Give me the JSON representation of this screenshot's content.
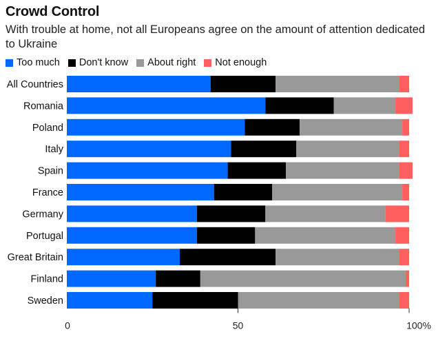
{
  "chart_data": {
    "type": "bar",
    "orientation": "horizontal",
    "stacked": true,
    "title": "Crowd Control",
    "subtitle": "With trouble at home, not all Europeans agree on the amount of attention dedicated to Ukraine",
    "xlabel": "",
    "ylabel": "",
    "xlim": [
      0,
      100
    ],
    "x_ticks": [
      0,
      50,
      100
    ],
    "x_tick_labels": [
      "0",
      "50",
      "100%"
    ],
    "grid": false,
    "legend_position": "top-left",
    "categories": [
      "All Countries",
      "Romania",
      "Poland",
      "Italy",
      "Spain",
      "France",
      "Germany",
      "Portugal",
      "Great Britain",
      "Finland",
      "Sweden"
    ],
    "series": [
      {
        "name": "Too much",
        "color": "#0068ff",
        "values": [
          42,
          58,
          52,
          48,
          47,
          43,
          38,
          38,
          33,
          26,
          25
        ]
      },
      {
        "name": "Don't know",
        "color": "#000000",
        "values": [
          19,
          20,
          16,
          19,
          17,
          17,
          20,
          17,
          28,
          13,
          25
        ]
      },
      {
        "name": "About right",
        "color": "#999999",
        "values": [
          36,
          18,
          30,
          30,
          33,
          38,
          35,
          41,
          36,
          60,
          47
        ]
      },
      {
        "name": "Not enough",
        "color": "#ff5f5f",
        "values": [
          3,
          5,
          2,
          3,
          4,
          2,
          7,
          4,
          3,
          1,
          3
        ]
      }
    ]
  }
}
